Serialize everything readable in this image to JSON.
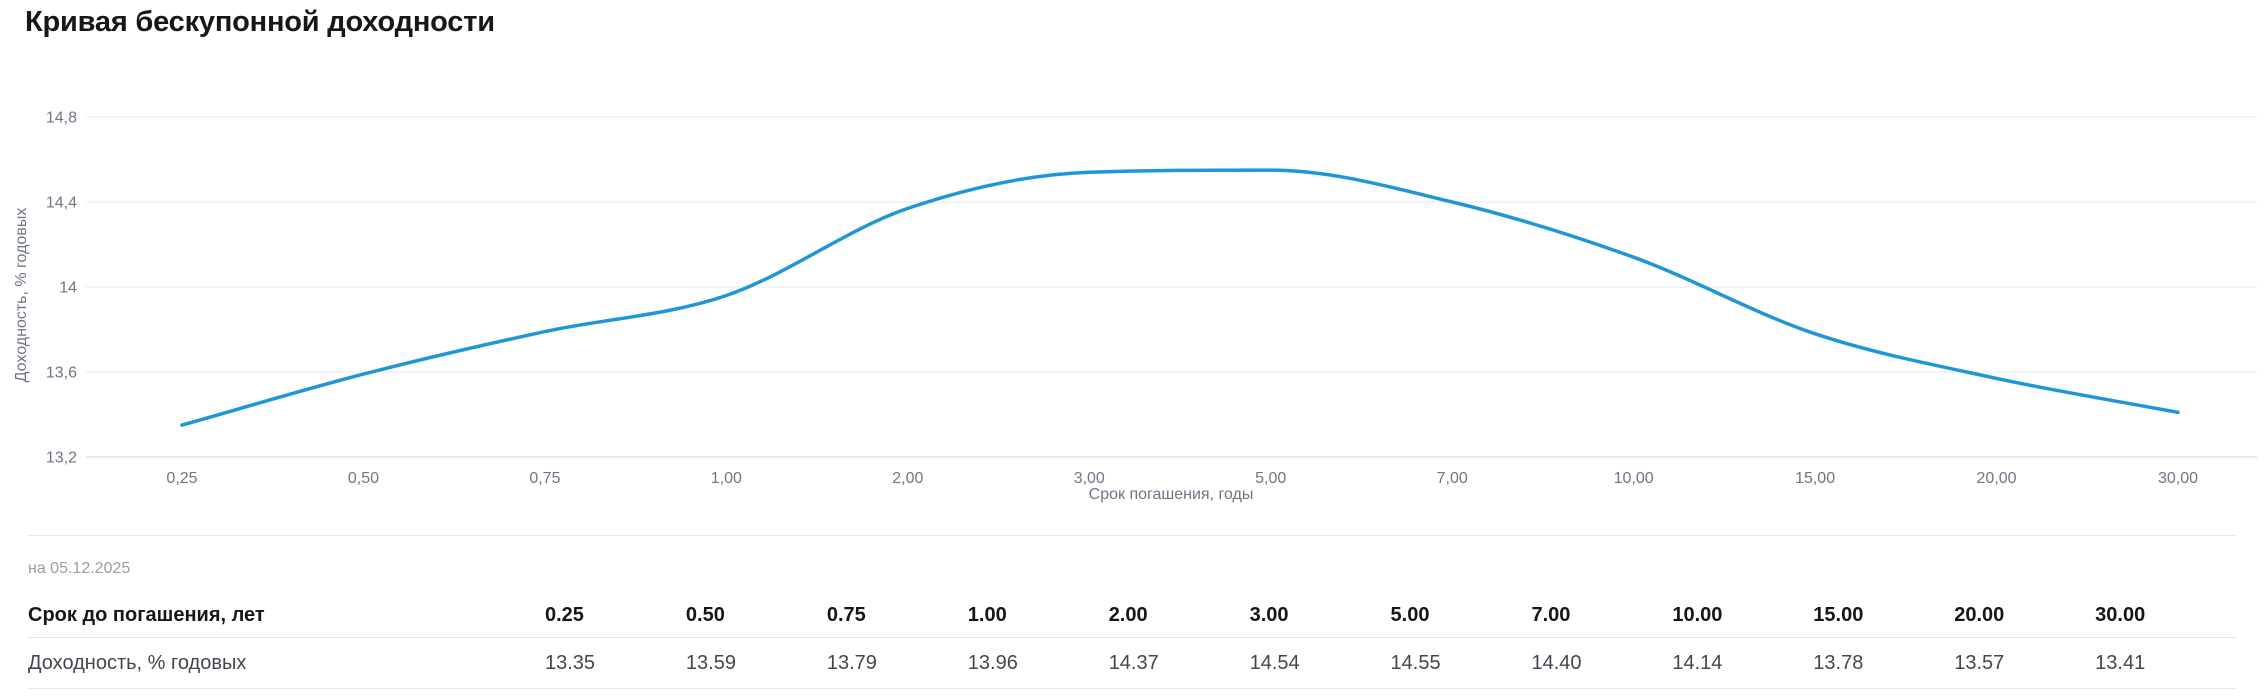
{
  "page": {
    "title": "Кривая бескупонной доходности"
  },
  "chart_data": {
    "type": "line",
    "x_type": "category",
    "categories": [
      "0,25",
      "0,50",
      "0,75",
      "1,00",
      "2,00",
      "3,00",
      "5,00",
      "7,00",
      "10,00",
      "15,00",
      "20,00",
      "30,00"
    ],
    "values": [
      13.35,
      13.59,
      13.79,
      13.96,
      14.37,
      14.54,
      14.55,
      14.4,
      14.14,
      13.78,
      13.57,
      13.41
    ],
    "title": "Кривая бескупонной доходности",
    "xlabel": "Срок погашения, годы",
    "ylabel": "Доходность, % годовых",
    "ylim": [
      13.2,
      14.8
    ],
    "yticks": [
      13.2,
      13.6,
      14,
      14.4,
      14.8
    ],
    "ytick_labels": [
      "13,2",
      "13,6",
      "14",
      "14,4",
      "14,8"
    ],
    "grid": true,
    "legend": "none",
    "line_color": "#1f96d6"
  },
  "asof": {
    "text": "на 05.12.2025"
  },
  "table": {
    "rows": [
      {
        "label": "Срок до погашения, лет",
        "bold": true,
        "values": [
          "0.25",
          "0.50",
          "0.75",
          "1.00",
          "2.00",
          "3.00",
          "5.00",
          "7.00",
          "10.00",
          "15.00",
          "20.00",
          "30.00"
        ]
      },
      {
        "label": "Доходность, % годовых",
        "bold": false,
        "values": [
          "13.35",
          "13.59",
          "13.79",
          "13.96",
          "14.37",
          "14.54",
          "14.55",
          "14.40",
          "14.14",
          "13.78",
          "13.57",
          "13.41"
        ]
      }
    ]
  },
  "colors": {
    "line": "#1f96d6",
    "gridline": "#ededf2",
    "axis_line": "#dfdfe9",
    "tick_text": "#6e7585",
    "title_text": "#16171a",
    "asof_text": "#9b9da5",
    "border": "#e7e7ec"
  }
}
